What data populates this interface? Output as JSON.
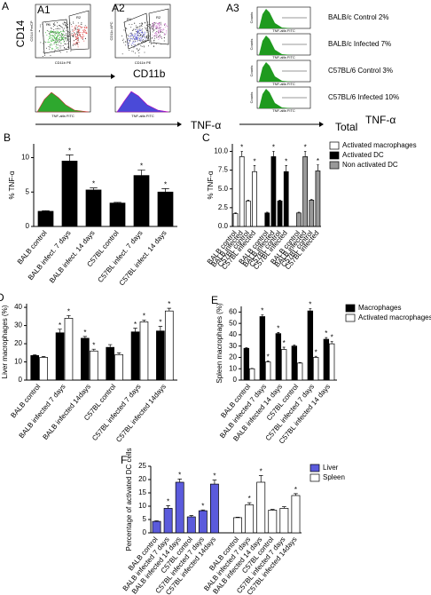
{
  "panel_a": {
    "label": "A",
    "a1": {
      "label": "A1",
      "x_axis": "CD11b PE",
      "y_axis": "CD14 PerCP",
      "gates": [
        "R1",
        "R2"
      ]
    },
    "a2": {
      "label": "A2",
      "x_axis": "CD11b PE",
      "y_axis": "CD11c APC",
      "gates": [
        "R1",
        "R2"
      ]
    },
    "ylabel": "CD14",
    "xlabel": "CD11b",
    "tnf": "TNF-α",
    "hist_axis": "TNF-alfa FITC",
    "counts": "Counts",
    "a3": {
      "label": "A3",
      "histograms": [
        "BALB/c Control 2%",
        "BALB/c Infected 7%",
        "C57BL/6 Control 3%",
        "C57BL/6 Infected 10%"
      ]
    },
    "total": "Total",
    "tnf_total": "TNF-α"
  },
  "chart_data": [
    {
      "type": "bar",
      "label": "B",
      "ylabel": "% TNF-α",
      "categories": [
        "BALB control",
        "BALB infect. 7 days",
        "BALB infect. 14 days",
        "C57BL control",
        "C57BL infect. 7 days",
        "C57BL infect. 14 days"
      ],
      "grouping": "by-category",
      "series": [
        {
          "color": "#000000",
          "values": [
            2.2,
            9.5,
            5.3,
            3.4,
            7.4,
            5.0
          ],
          "errors": [
            0.1,
            0.9,
            0.3,
            0.1,
            0.8,
            0.5
          ],
          "significance": [
            null,
            "*",
            "*",
            null,
            "*",
            "*"
          ]
        }
      ],
      "ylim": [
        0,
        12
      ],
      "yticks": [
        0,
        5,
        10
      ]
    },
    {
      "type": "bar",
      "label": "C",
      "ylabel": "% TNF-α",
      "categories": [
        "BALB control",
        "BALB infected",
        "C57BL control",
        "C57BL infected"
      ],
      "grouping": "by-series",
      "legend": "right",
      "series": [
        {
          "name": "Activated macrophages",
          "color": "#ffffff",
          "values": [
            1.7,
            9.3,
            3.4,
            7.3
          ],
          "errors": [
            0.1,
            0.7,
            0.1,
            0.8
          ],
          "significance": [
            null,
            "*",
            null,
            "*"
          ]
        },
        {
          "name": "Activated DC",
          "color": "#000000",
          "values": [
            1.8,
            9.3,
            3.4,
            7.3
          ],
          "errors": [
            0.1,
            0.7,
            0.1,
            0.8
          ],
          "significance": [
            null,
            "*",
            null,
            "*"
          ]
        },
        {
          "name": "Non activated DC",
          "color": "#999999",
          "values": [
            1.8,
            9.3,
            3.5,
            7.4
          ],
          "errors": [
            0.1,
            0.7,
            0.1,
            0.8
          ],
          "significance": [
            null,
            "*",
            null,
            "*"
          ]
        }
      ],
      "ylim": [
        0,
        11
      ],
      "yticks": [
        {
          "value": 0,
          "label": "0.0"
        },
        {
          "value": 2.5,
          "label": "2.5"
        },
        {
          "value": 5,
          "label": "5.0"
        },
        {
          "value": 7.5,
          "label": "7.5"
        },
        {
          "value": 10,
          "label": "10.0"
        }
      ]
    },
    {
      "type": "bar",
      "label": "D",
      "ylabel": "Liver macrophages (%)",
      "categories": [
        "BALB control",
        "BALB infected 7 days",
        "BALB infected 14days",
        "C57BL control",
        "C57BL infected 7 days",
        "C57BL infected 14days"
      ],
      "grouping": "by-category",
      "series": [
        {
          "color": "#000000",
          "values": [
            13.5,
            26,
            23,
            18,
            26.5,
            27
          ],
          "errors": [
            0.5,
            2,
            1,
            1.5,
            2,
            2.5
          ],
          "significance": [
            null,
            "*",
            "*",
            null,
            "*",
            "*"
          ]
        },
        {
          "color": "#ffffff",
          "values": [
            12.5,
            34,
            16,
            14,
            32,
            38
          ],
          "errors": [
            0.5,
            1.5,
            1,
            1,
            1,
            1.5
          ],
          "significance": [
            null,
            "*",
            "*",
            null,
            "*",
            "*"
          ]
        }
      ],
      "ylim": [
        0,
        42
      ],
      "yticks": [
        0,
        10,
        20,
        30,
        40
      ]
    },
    {
      "type": "bar",
      "label": "E",
      "ylabel": "Spleen macrophages (%)",
      "categories": [
        "BALB control",
        "BALB infected 7 days",
        "BALB infected 14 days",
        "C57BL control",
        "C57BL infected 7 days",
        "C57BL infected 14 days"
      ],
      "grouping": "by-category",
      "legend": "right",
      "series": [
        {
          "name": "Macrophages",
          "color": "#000000",
          "values": [
            28,
            56,
            41,
            30,
            61,
            36
          ],
          "errors": [
            0.5,
            1.5,
            1,
            1,
            2,
            1.5
          ],
          "significance": [
            null,
            "*",
            "*",
            null,
            "*",
            "*"
          ]
        },
        {
          "name": "Activated macrophages",
          "color": "#ffffff",
          "values": [
            10,
            16,
            27,
            15,
            20,
            32
          ],
          "errors": [
            0.3,
            1,
            2,
            0.5,
            1,
            2
          ],
          "significance": [
            null,
            "*",
            "*",
            null,
            "*",
            "*"
          ]
        }
      ],
      "ylim": [
        0,
        65
      ],
      "yticks": [
        0,
        10,
        20,
        30,
        40,
        50,
        60
      ]
    },
    {
      "type": "bar",
      "label": "F",
      "ylabel": "Percentage of activated DC cells",
      "categories": [
        "BALB control",
        "BALB infected 7 days",
        "BALB infected 14 days",
        "C57BL control",
        "C57BL infected 7 days",
        "C57BL infected 14days"
      ],
      "grouping": "by-series",
      "legend": "right",
      "series": [
        {
          "name": "Liver",
          "color": "#5b5bdc",
          "values": [
            4.3,
            9.2,
            19,
            6,
            8.3,
            18.3
          ],
          "errors": [
            0.2,
            1,
            1.2,
            0.5,
            0.3,
            1.5
          ],
          "significance": [
            null,
            "*",
            "*",
            null,
            "*",
            "*"
          ]
        },
        {
          "name": "Spleen",
          "color": "#ffffff",
          "values": [
            5.7,
            10.5,
            19,
            8.5,
            9.2,
            14
          ],
          "errors": [
            0.2,
            0.8,
            2.5,
            0.3,
            0.6,
            0.7
          ],
          "significance": [
            null,
            "*",
            "*",
            null,
            null,
            "*"
          ]
        }
      ],
      "ylim": [
        0,
        25
      ],
      "yticks": [
        0,
        5,
        10,
        15,
        20,
        25
      ]
    }
  ]
}
